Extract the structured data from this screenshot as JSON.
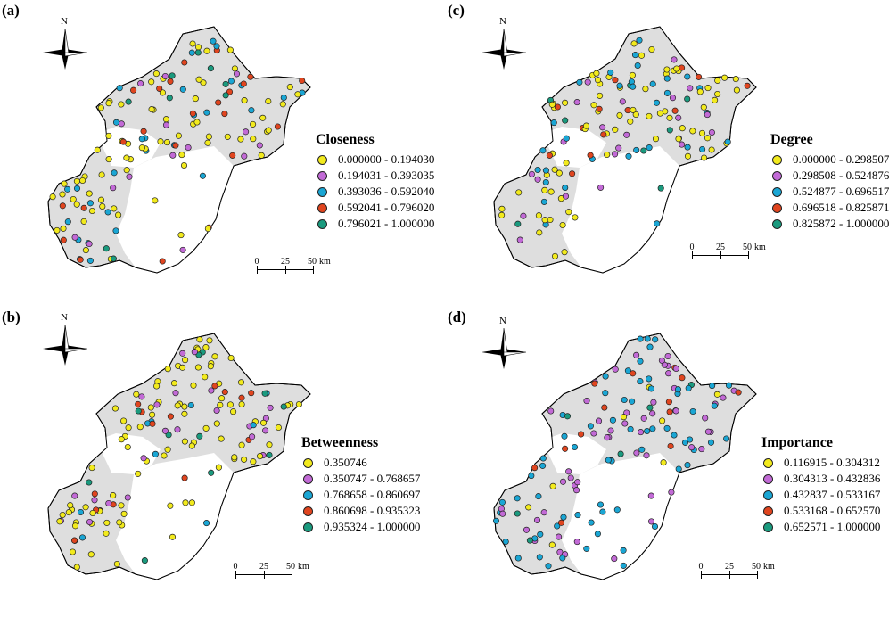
{
  "colors": {
    "class_colors": [
      "#f2ea1d",
      "#c26ad6",
      "#1aa6d4",
      "#e0451f",
      "#1a9a7e"
    ],
    "region_fill": "#dedede",
    "region_stroke": "#000000"
  },
  "compass_north": "N",
  "scale_bar": {
    "ticks": [
      "0",
      "25",
      "50"
    ],
    "unit": "km"
  },
  "panels": [
    {
      "label": "(a)",
      "legend_title": "Closeness",
      "classes": [
        "0.000000 - 0.194030",
        "0.194031 - 0.393035",
        "0.393036 - 0.592040",
        "0.592041 - 0.796020",
        "0.796021 - 1.000000"
      ]
    },
    {
      "label": "(b)",
      "legend_title": "Betweenness",
      "classes": [
        "0.350746",
        "0.350747 - 0.768657",
        "0.768658 - 0.860697",
        "0.860698 - 0.935323",
        "0.935324 - 1.000000"
      ]
    },
    {
      "label": "(c)",
      "legend_title": "Degree",
      "classes": [
        "0.000000 - 0.298507",
        "0.298508 - 0.524876",
        "0.524877 - 0.696517",
        "0.696518 - 0.825871",
        "0.825872 - 1.000000"
      ]
    },
    {
      "label": "(d)",
      "legend_title": "Importance",
      "classes": [
        "0.116915 - 0.304312",
        "0.304313 - 0.432836",
        "0.432837 - 0.533167",
        "0.533168 - 0.652570",
        "0.652571 - 1.000000"
      ]
    }
  ]
}
